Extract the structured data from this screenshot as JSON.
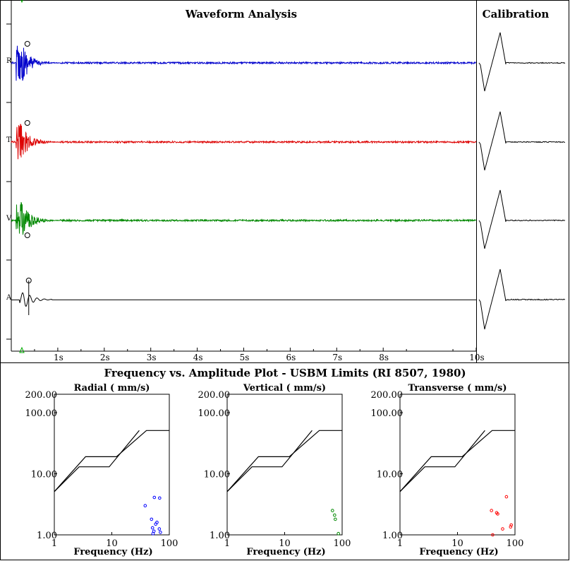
{
  "waveform": {
    "title": "Waveform Analysis",
    "calibration_title": "Calibration",
    "channels": [
      {
        "label": "R",
        "color": "#0000cc",
        "peak_marker": "above"
      },
      {
        "label": "T",
        "color": "#dd0000",
        "peak_marker": "above"
      },
      {
        "label": "V",
        "color": "#008800",
        "peak_marker": "below"
      },
      {
        "label": "A",
        "color": "#000000",
        "peak_marker": "above"
      }
    ],
    "time_ticks": [
      "1s",
      "2s",
      "3s",
      "4s",
      "5s",
      "6s",
      "7s",
      "8s",
      "10s"
    ],
    "time_tick_values": [
      1,
      2,
      3,
      4,
      5,
      6,
      7,
      8,
      10
    ],
    "time_range": [
      0,
      10
    ],
    "trigger_marker_color": "#00aa00"
  },
  "freq_plot": {
    "title": "Frequency vs. Amplitude Plot - USBM Limits (RI 8507, 1980)",
    "xlabel": "Frequency (Hz)",
    "x_ticks": [
      "1",
      "10",
      "100"
    ],
    "y_ticks": [
      "200.00",
      "100.00",
      "10.00",
      "1.00"
    ],
    "y_tick_values": [
      200,
      100,
      10,
      1
    ],
    "xlim": [
      1,
      100
    ],
    "ylim": [
      1,
      200
    ],
    "usbm_limit_lines": [
      [
        [
          1,
          5.1
        ],
        [
          3.5,
          19
        ],
        [
          12,
          19
        ],
        [
          40,
          51
        ],
        [
          100,
          51
        ]
      ],
      [
        [
          1,
          5.1
        ],
        [
          2.7,
          13
        ],
        [
          9,
          13
        ],
        [
          30,
          51
        ]
      ]
    ]
  },
  "chart_data": [
    {
      "type": "scatter",
      "title": "Radial ( mm/s)",
      "xlabel": "Frequency (Hz)",
      "xscale": "log",
      "yscale": "log",
      "xlim": [
        1,
        100
      ],
      "ylim": [
        1,
        200
      ],
      "color": "#0000ff",
      "points": [
        [
          38,
          3.0
        ],
        [
          49,
          1.8
        ],
        [
          51,
          1.3
        ],
        [
          54,
          1.15
        ],
        [
          55,
          4.1
        ],
        [
          58,
          1.5
        ],
        [
          61,
          1.6
        ],
        [
          67,
          1.25
        ],
        [
          68,
          4.0
        ],
        [
          70,
          1.1
        ],
        [
          52,
          1.05
        ]
      ]
    },
    {
      "type": "scatter",
      "title": "Vertical ( mm/s)",
      "xlabel": "Frequency (Hz)",
      "xscale": "log",
      "yscale": "log",
      "xlim": [
        1,
        100
      ],
      "ylim": [
        1,
        200
      ],
      "color": "#008800",
      "points": [
        [
          68,
          2.5
        ],
        [
          74,
          2.1
        ],
        [
          76,
          1.8
        ],
        [
          86,
          1.05
        ]
      ]
    },
    {
      "type": "scatter",
      "title": "Transverse ( mm/s)",
      "xlabel": "Frequency (Hz)",
      "xscale": "log",
      "yscale": "log",
      "xlim": [
        1,
        100
      ],
      "ylim": [
        1,
        200
      ],
      "color": "#ff0000",
      "points": [
        [
          39,
          2.5
        ],
        [
          41,
          1.0
        ],
        [
          48,
          2.3
        ],
        [
          50,
          2.2
        ],
        [
          61,
          1.25
        ],
        [
          71,
          4.2
        ],
        [
          84,
          1.35
        ],
        [
          86,
          1.45
        ]
      ]
    }
  ]
}
